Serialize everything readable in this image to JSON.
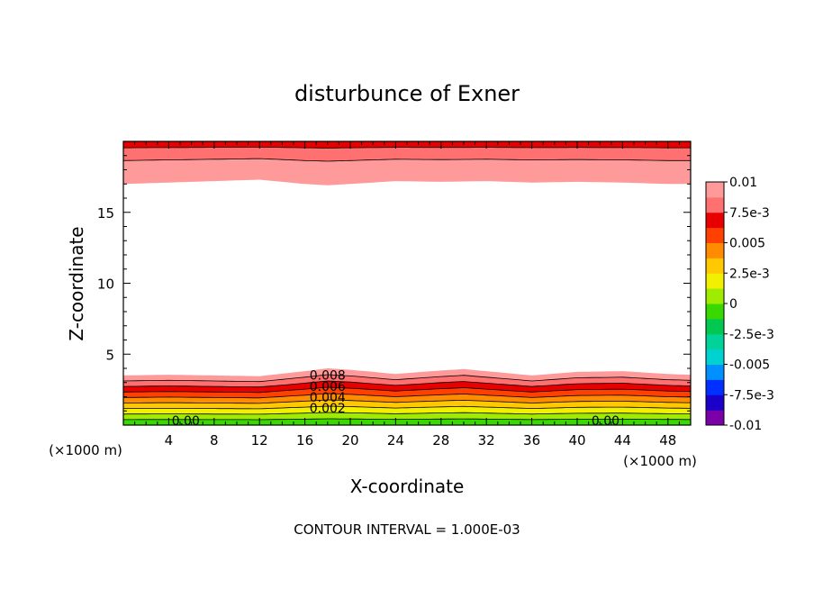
{
  "chart_data": {
    "type": "heatmap",
    "title": "disturbunce of Exner",
    "xlabel": "X-coordinate",
    "ylabel": "Z-coordinate",
    "x_unit_left": "(×1000 m)",
    "x_unit_right": "(×1000 m)",
    "footer": "CONTOUR INTERVAL = 1.000E-03",
    "xlim": [
      0,
      50
    ],
    "ylim": [
      0,
      20
    ],
    "x_ticks": [
      "4",
      "8",
      "12",
      "16",
      "20",
      "24",
      "28",
      "32",
      "36",
      "40",
      "44",
      "48"
    ],
    "y_ticks": [
      "5",
      "10",
      "15"
    ],
    "x_tick_values": [
      4,
      8,
      12,
      16,
      20,
      24,
      28,
      32,
      36,
      40,
      44,
      48
    ],
    "y_tick_values": [
      5,
      10,
      15
    ],
    "colorbar": {
      "range": [
        -0.01,
        0.01
      ],
      "labels": [
        "0.01",
        "7.5e-3",
        "0.005",
        "2.5e-3",
        "0",
        "-2.5e-3",
        "-0.005",
        "-7.5e-3",
        "-0.01"
      ],
      "colors": [
        "#7a00a8",
        "#1a00c8",
        "#0030ff",
        "#0090ff",
        "#00d2d2",
        "#00d29a",
        "#00c850",
        "#38d800",
        "#a0ec00",
        "#f0f000",
        "#ffc800",
        "#ff8c00",
        "#ff4000",
        "#e80000",
        "#ff7070",
        "#ff9a9a"
      ]
    },
    "contour_labels": [
      {
        "text": "0.008",
        "x": 18.0,
        "y": 3.2
      },
      {
        "text": "0.006",
        "x": 18.0,
        "y": 2.4
      },
      {
        "text": "0.004",
        "x": 18.0,
        "y": 1.65
      },
      {
        "text": "0.002",
        "x": 18.0,
        "y": 0.9
      },
      {
        "text": "0.00",
        "x": 5.5,
        "y": 0.0
      },
      {
        "text": "0.00",
        "x": 42.5,
        "y": 0.0
      }
    ],
    "bottom_band_profile": {
      "x": [
        0,
        4,
        8,
        12,
        16,
        18,
        20,
        24,
        28,
        30,
        32,
        36,
        40,
        44,
        48,
        50
      ],
      "top_of_colored_layer_km": [
        3.5,
        3.55,
        3.5,
        3.45,
        3.8,
        4.0,
        3.9,
        3.6,
        3.85,
        3.95,
        3.8,
        3.5,
        3.75,
        3.8,
        3.6,
        3.55
      ]
    },
    "top_band_profile": {
      "x": [
        0,
        4,
        8,
        12,
        16,
        18,
        20,
        24,
        28,
        32,
        36,
        40,
        44,
        48,
        50
      ],
      "bottom_of_colored_layer_km": [
        17.0,
        17.1,
        17.2,
        17.3,
        17.0,
        16.9,
        17.0,
        17.2,
        17.15,
        17.2,
        17.1,
        17.15,
        17.1,
        17.0,
        17.0
      ]
    }
  }
}
